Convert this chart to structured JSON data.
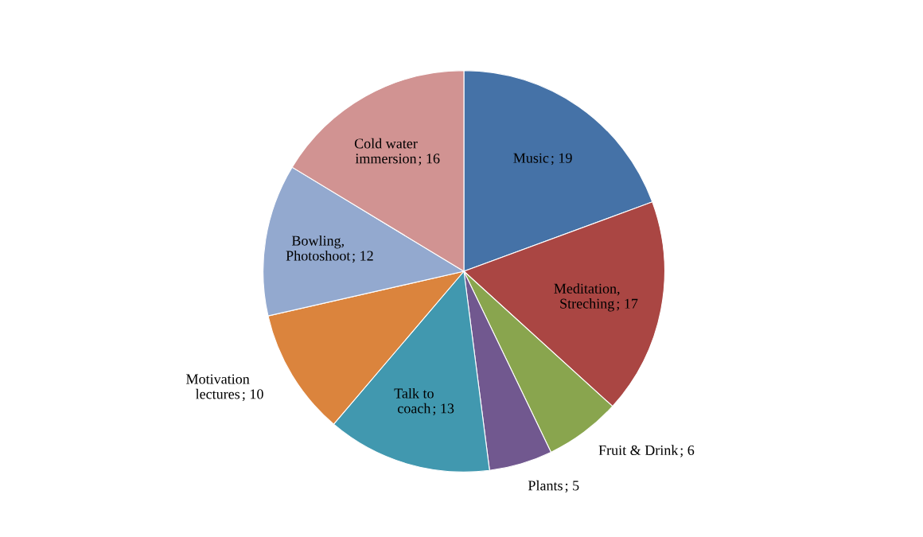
{
  "chart_data": {
    "type": "pie",
    "categories": [
      "Music",
      "Meditation, Streching",
      "Fruit & Drink",
      "Plants",
      "Talk to coach",
      "Motivation lectures",
      "Bowling, Photoshoot",
      "Cold water immersion"
    ],
    "values": [
      19,
      17,
      6,
      5,
      13,
      10,
      12,
      16
    ],
    "colors": [
      "#4572a7",
      "#aa4643",
      "#89a54e",
      "#71588f",
      "#4198af",
      "#db843d",
      "#93a9cf",
      "#d19392"
    ],
    "value_labels": [
      "; 19",
      "; 17",
      "; 6",
      "; 5",
      "; 13",
      "; 10",
      "; 12",
      "; 16"
    ],
    "legend": false
  }
}
